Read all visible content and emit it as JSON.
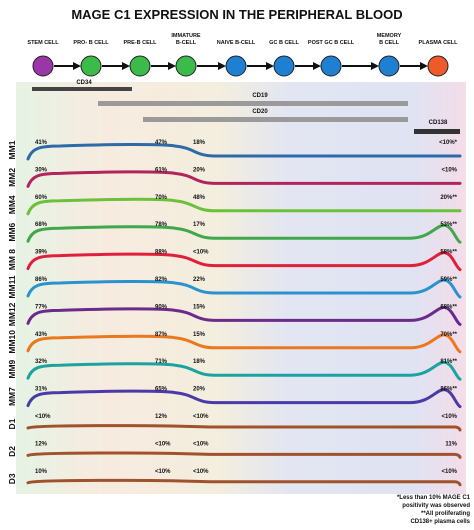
{
  "title": "MAGE C1 EXPRESSION IN THE PERIPHERAL BLOOD",
  "stages": [
    {
      "label": [
        "STEM CELL"
      ],
      "color": "#9b36a8"
    },
    {
      "label": [
        "PRO- B CELL"
      ],
      "color": "#3dbb4a"
    },
    {
      "label": [
        "PRE-B CELL"
      ],
      "color": "#3dbb4a"
    },
    {
      "label": [
        "IMMATURE",
        "B-CELL"
      ],
      "color": "#3dbb4a"
    },
    {
      "label": [
        "NAIVE B-CELL"
      ],
      "color": "#1f7fd0"
    },
    {
      "label": [
        "GC B CELL"
      ],
      "color": "#1f7fd0"
    },
    {
      "label": [
        "POST GC B CELL"
      ],
      "color": "#1f7fd0"
    },
    {
      "label": [
        "MEMORY",
        "B CELL"
      ],
      "color": "#1f7fd0"
    },
    {
      "label": [
        "PLASMA CELL"
      ],
      "color": "#ef5a2a"
    }
  ],
  "markers": [
    {
      "label": "CD34",
      "color": "#444444"
    },
    {
      "label": "CD19",
      "color": "#9a9a9a"
    },
    {
      "label": "CD20",
      "color": "#9a9a9a"
    },
    {
      "label": "CD138",
      "color": "#333333"
    }
  ],
  "samples": [
    {
      "name": "MM1",
      "v1": "41%",
      "v2": "47%",
      "v3": "18%",
      "v4": "<10%*",
      "color": "#2e6aa8",
      "shape": "peak-mid"
    },
    {
      "name": "MM2",
      "v1": "30%",
      "v2": "61%",
      "v3": "20%",
      "v4": "<10%",
      "color": "#b2245c",
      "shape": "peak-mid"
    },
    {
      "name": "MM4",
      "v1": "60%",
      "v2": "70%",
      "v3": "48%",
      "v4": "20%**",
      "color": "#6cc13a",
      "shape": "peak-mid"
    },
    {
      "name": "MM6",
      "v1": "68%",
      "v2": "78%",
      "v3": "17%",
      "v4": "53%**",
      "color": "#3fa84a",
      "shape": "peak-both"
    },
    {
      "name": "MM 8",
      "v1": "39%",
      "v2": "88%",
      "v3": "<10%",
      "v4": "58%**",
      "color": "#e0203a",
      "shape": "peak-both"
    },
    {
      "name": "MM11",
      "v1": "86%",
      "v2": "82%",
      "v3": "22%",
      "v4": "59%**",
      "color": "#2a93cf",
      "shape": "peak-both"
    },
    {
      "name": "MM12",
      "v1": "77%",
      "v2": "90%",
      "v3": "15%",
      "v4": "68%**",
      "color": "#6b2a8c",
      "shape": "peak-both"
    },
    {
      "name": "MM10",
      "v1": "43%",
      "v2": "87%",
      "v3": "15%",
      "v4": "70%**",
      "color": "#e9781f",
      "shape": "peak-both"
    },
    {
      "name": "MM9",
      "v1": "32%",
      "v2": "71%",
      "v3": "18%",
      "v4": "81%**",
      "color": "#1aa3a0",
      "shape": "peak-both"
    },
    {
      "name": "MM7",
      "v1": "31%",
      "v2": "65%",
      "v3": "20%",
      "v4": "86%**",
      "color": "#4a3aa8",
      "shape": "peak-both"
    },
    {
      "name": "D1",
      "v1": "<10%",
      "v2": "12%",
      "v3": "<10%",
      "v4": "<10%",
      "color": "#a0522d",
      "shape": "flat"
    },
    {
      "name": "D2",
      "v1": "12%",
      "v2": "<10%",
      "v3": "<10%",
      "v4": "11%",
      "color": "#a0522d",
      "shape": "flat"
    },
    {
      "name": "D3",
      "v1": "10%",
      "v2": "<10%",
      "v3": "<10%",
      "v4": "<10%",
      "color": "#a0522d",
      "shape": "flat"
    }
  ],
  "footnotes": [
    "*Less than 10% MAGE C1",
    "positivity was observed",
    "**All proliferating",
    "CD138+ plasma cells"
  ]
}
